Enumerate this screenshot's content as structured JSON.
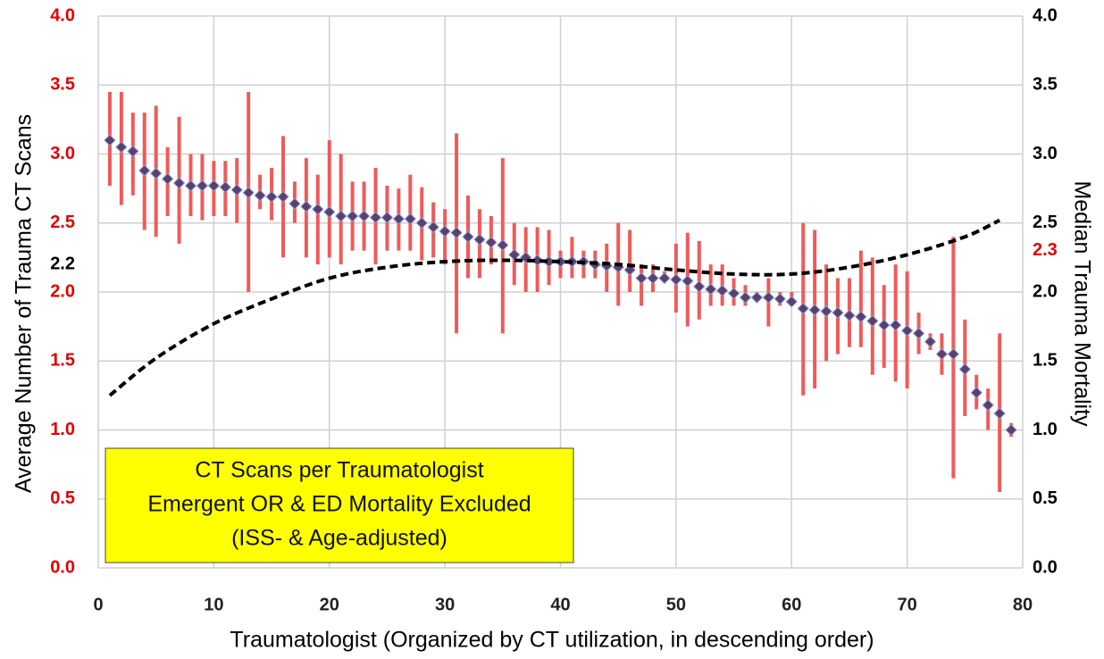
{
  "chart_data": {
    "type": "errorbar",
    "xlabel": "Traumatologist (Organized by CT utilization, in descending order)",
    "ylabel": "Average Number of Trauma CT Scans",
    "y2label": "Median Trauma Mortality",
    "annotation": [
      "CT Scans per Traumatologist",
      "Emergent OR & ED Mortality Excluded",
      "(ISS- & Age-adjusted)"
    ],
    "annotation_color": "#ffff00",
    "xlim": [
      0,
      80
    ],
    "xticks": [
      0,
      10,
      20,
      30,
      40,
      50,
      60,
      70,
      80
    ],
    "ylim": [
      0,
      4
    ],
    "yticks": [
      {
        "value": 0,
        "label": "0.0"
      },
      {
        "value": 0.5,
        "label": "0.5"
      },
      {
        "value": 1,
        "label": "1.0"
      },
      {
        "value": 1.5,
        "label": "1.5"
      },
      {
        "value": 2,
        "label": "2.0"
      },
      {
        "value": 2.5,
        "label": "2.5"
      },
      {
        "value": 3,
        "label": "3.0"
      },
      {
        "value": 3.5,
        "label": "3.5"
      },
      {
        "value": 4,
        "label": "4.0"
      }
    ],
    "ytick_color": "#e00000",
    "ytick_extra": {
      "value": 2.2,
      "label": "2.2",
      "color": "#000000"
    },
    "y2lim": [
      0,
      4
    ],
    "y2ticks": [
      {
        "value": 0,
        "label": "0.0"
      },
      {
        "value": 0.5,
        "label": "0.5"
      },
      {
        "value": 1,
        "label": "1.0"
      },
      {
        "value": 1.5,
        "label": "1.5"
      },
      {
        "value": 2,
        "label": "2.0"
      },
      {
        "value": 2.5,
        "label": "2.5"
      },
      {
        "value": 3,
        "label": "3.0"
      },
      {
        "value": 3.5,
        "label": "3.5"
      },
      {
        "value": 4,
        "label": "4.0"
      }
    ],
    "y2tick_color": "#000000",
    "y2tick_extra": {
      "value": 2.3,
      "label": "2.3",
      "color": "#e00000"
    },
    "grid": true,
    "series": [
      {
        "color": "#5b3f6e",
        "error_color": "#f05a5a",
        "x": [
          1,
          2,
          3,
          4,
          5,
          6,
          7,
          8,
          9,
          10,
          11,
          12,
          13,
          14,
          15,
          16,
          17,
          18,
          19,
          20,
          21,
          22,
          23,
          24,
          25,
          26,
          27,
          28,
          29,
          30,
          31,
          32,
          33,
          34,
          35,
          36,
          37,
          38,
          39,
          40,
          41,
          42,
          43,
          44,
          45,
          46,
          47,
          48,
          49,
          50,
          51,
          52,
          53,
          54,
          55,
          56,
          57,
          58,
          59,
          60,
          61,
          62,
          63,
          64,
          65,
          66,
          67,
          68,
          69,
          70,
          71,
          72,
          73,
          74,
          75,
          76,
          77,
          78,
          79
        ],
        "values": [
          3.1,
          3.05,
          3.02,
          2.88,
          2.86,
          2.82,
          2.79,
          2.77,
          2.77,
          2.77,
          2.76,
          2.74,
          2.72,
          2.7,
          2.69,
          2.69,
          2.64,
          2.62,
          2.6,
          2.58,
          2.55,
          2.55,
          2.55,
          2.54,
          2.54,
          2.53,
          2.53,
          2.5,
          2.47,
          2.44,
          2.43,
          2.4,
          2.38,
          2.36,
          2.34,
          2.27,
          2.25,
          2.23,
          2.22,
          2.22,
          2.22,
          2.22,
          2.2,
          2.19,
          2.18,
          2.16,
          2.1,
          2.1,
          2.1,
          2.09,
          2.08,
          2.04,
          2.02,
          2.01,
          1.99,
          1.96,
          1.96,
          1.96,
          1.95,
          1.93,
          1.88,
          1.87,
          1.86,
          1.85,
          1.83,
          1.82,
          1.79,
          1.76,
          1.76,
          1.72,
          1.7,
          1.64,
          1.55,
          1.55,
          1.44,
          1.27,
          1.18,
          1.12,
          1.0
        ],
        "lower": [
          2.77,
          2.63,
          2.7,
          2.45,
          2.4,
          2.55,
          2.35,
          2.55,
          2.52,
          2.55,
          2.55,
          2.5,
          2.0,
          2.6,
          2.52,
          2.25,
          2.5,
          2.25,
          2.2,
          2.25,
          2.2,
          2.3,
          2.3,
          2.2,
          2.3,
          2.3,
          2.3,
          2.23,
          2.25,
          2.2,
          1.7,
          2.1,
          2.1,
          2.2,
          1.7,
          2.05,
          2.0,
          2.0,
          2.05,
          2.1,
          2.1,
          2.1,
          2.1,
          2.0,
          1.9,
          2.0,
          1.9,
          2.0,
          2.1,
          1.85,
          1.75,
          1.8,
          1.9,
          1.9,
          1.9,
          1.9,
          1.95,
          1.75,
          1.9,
          1.9,
          1.25,
          1.3,
          1.5,
          1.55,
          1.6,
          1.6,
          1.4,
          1.45,
          1.35,
          1.3,
          1.55,
          1.58,
          1.4,
          0.65,
          1.1,
          1.15,
          1.0,
          0.55,
          0.95
        ],
        "upper": [
          3.45,
          3.45,
          3.3,
          3.3,
          3.35,
          3.05,
          3.27,
          3.0,
          3.0,
          2.95,
          2.95,
          2.97,
          3.45,
          2.85,
          2.9,
          3.13,
          2.8,
          2.97,
          2.85,
          3.1,
          3.0,
          2.8,
          2.8,
          2.9,
          2.77,
          2.75,
          2.85,
          2.76,
          2.65,
          2.6,
          3.15,
          2.7,
          2.6,
          2.55,
          2.97,
          2.5,
          2.47,
          2.47,
          2.45,
          2.3,
          2.4,
          2.3,
          2.3,
          2.35,
          2.5,
          2.45,
          2.2,
          2.2,
          2.15,
          2.35,
          2.43,
          2.37,
          2.2,
          2.2,
          2.1,
          2.05,
          2.0,
          2.1,
          2.0,
          2.0,
          2.5,
          2.45,
          2.2,
          2.1,
          2.1,
          2.3,
          2.25,
          2.05,
          2.2,
          2.15,
          1.85,
          1.7,
          1.7,
          2.4,
          1.8,
          1.4,
          1.3,
          1.7,
          1.05
        ]
      },
      {
        "color": "#000000",
        "dashed": true,
        "axis": "y2",
        "x": [
          1,
          5,
          10,
          15,
          20,
          25,
          30,
          35,
          40,
          45,
          50,
          55,
          60,
          65,
          70,
          75,
          78
        ],
        "values": [
          1.25,
          1.52,
          1.77,
          1.95,
          2.1,
          2.18,
          2.22,
          2.23,
          2.22,
          2.2,
          2.16,
          2.13,
          2.13,
          2.18,
          2.27,
          2.4,
          2.52
        ]
      }
    ]
  }
}
